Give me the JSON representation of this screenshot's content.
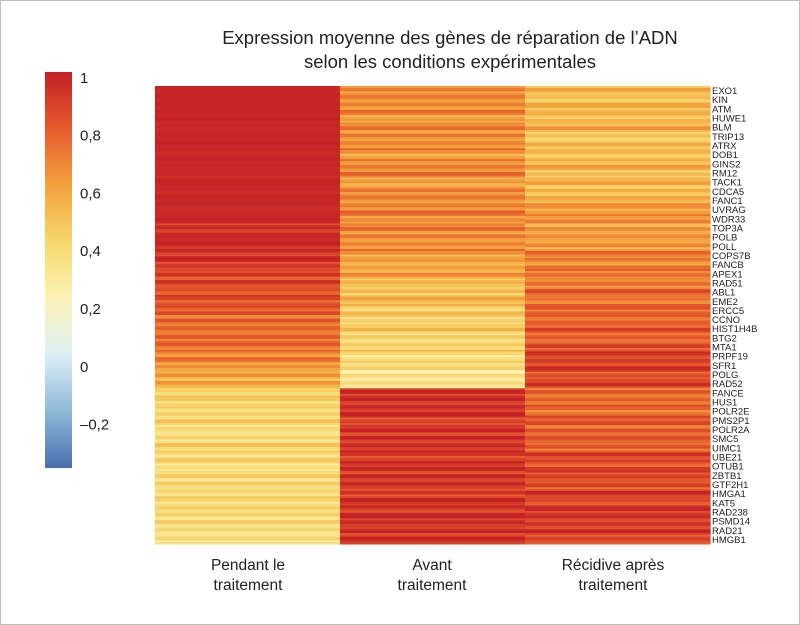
{
  "chart_data": {
    "type": "heatmap",
    "title_line1": "Expression moyenne des gènes de réparation de l’ADN",
    "title_line2": "selon les conditions expérimentales",
    "columns": [
      {
        "line1": "Pendant le",
        "line2": "traitement"
      },
      {
        "line1": "Avant",
        "line2": "traitement"
      },
      {
        "line1": "Récidive après",
        "line2": "traitement"
      }
    ],
    "colorbar": {
      "min": -0.35,
      "max": 1.02,
      "ticks": [
        "1",
        "0,8",
        "0,6",
        "0,4",
        "0,2",
        "0",
        "–0,2"
      ],
      "tick_values": [
        1,
        0.8,
        0.6,
        0.4,
        0.2,
        0,
        -0.2
      ],
      "colors": [
        "#4a6fb0",
        "#8fb8d8",
        "#def0f6",
        "#fbf3b6",
        "#f7d76b",
        "#f3a23d",
        "#e65a2c",
        "#c42026"
      ]
    },
    "genes": [
      "EXO1",
      "KIN",
      "ATM",
      "HUWE1",
      "BLM",
      "TRIP13",
      "ATRX",
      "DOB1",
      "GINS2",
      "RM12",
      "TACK1",
      "CDCA5",
      "FANC1",
      "UVRAG",
      "WDR33",
      "TOP3A",
      "POLB",
      "POLL",
      "COPS7B",
      "FANCB",
      "APEX1",
      "RAD51",
      "ABL1",
      "EME2",
      "ERCC5",
      "CCNO",
      "HIST1H4B",
      "BTG2",
      "MTA1",
      "PRPF19",
      "SFR1",
      "POLG",
      "RAD52",
      "FANCE",
      "HUS1",
      "POLR2E",
      "PMS2P1",
      "POLR2A",
      "SMC5",
      "UIMC1",
      "UBE21",
      "OTUB1",
      "ZBTB1",
      "GTF2H1",
      "HMGA1",
      "KAT5",
      "RAD238",
      "PSMD14",
      "RAD21",
      "HMGB1"
    ],
    "values": [
      [
        1.0,
        0.68,
        0.54
      ],
      [
        1.0,
        0.66,
        0.52
      ],
      [
        1.0,
        0.7,
        0.56
      ],
      [
        1.0,
        0.64,
        0.5
      ],
      [
        1.0,
        0.72,
        0.58
      ],
      [
        1.0,
        0.66,
        0.5
      ],
      [
        1.0,
        0.7,
        0.54
      ],
      [
        0.99,
        0.62,
        0.48
      ],
      [
        1.0,
        0.68,
        0.56
      ],
      [
        0.99,
        0.72,
        0.52
      ],
      [
        1.0,
        0.64,
        0.58
      ],
      [
        0.99,
        0.7,
        0.5
      ],
      [
        1.0,
        0.66,
        0.6
      ],
      [
        0.98,
        0.72,
        0.62
      ],
      [
        1.0,
        0.68,
        0.66
      ],
      [
        0.97,
        0.74,
        0.6
      ],
      [
        0.99,
        0.66,
        0.68
      ],
      [
        0.97,
        0.7,
        0.64
      ],
      [
        0.95,
        0.62,
        0.72
      ],
      [
        0.93,
        0.58,
        0.68
      ],
      [
        0.9,
        0.62,
        0.76
      ],
      [
        0.88,
        0.56,
        0.72
      ],
      [
        0.86,
        0.5,
        0.8
      ],
      [
        0.84,
        0.54,
        0.74
      ],
      [
        0.82,
        0.46,
        0.8
      ],
      [
        0.76,
        0.44,
        0.76
      ],
      [
        0.8,
        0.5,
        0.84
      ],
      [
        0.78,
        0.4,
        0.82
      ],
      [
        0.74,
        0.46,
        0.86
      ],
      [
        0.7,
        0.36,
        0.88
      ],
      [
        0.66,
        0.4,
        0.9
      ],
      [
        0.62,
        0.32,
        0.86
      ],
      [
        0.58,
        0.38,
        0.92
      ],
      [
        0.44,
        0.96,
        0.76
      ],
      [
        0.42,
        0.92,
        0.8
      ],
      [
        0.4,
        0.98,
        0.74
      ],
      [
        0.44,
        0.9,
        0.84
      ],
      [
        0.41,
        0.96,
        0.78
      ],
      [
        0.39,
        0.92,
        0.86
      ],
      [
        0.43,
        0.98,
        0.8
      ],
      [
        0.4,
        0.9,
        0.88
      ],
      [
        0.38,
        0.96,
        0.84
      ],
      [
        0.42,
        0.92,
        0.9
      ],
      [
        0.39,
        0.98,
        0.86
      ],
      [
        0.41,
        0.9,
        0.92
      ],
      [
        0.38,
        0.96,
        0.88
      ],
      [
        0.4,
        0.92,
        0.94
      ],
      [
        0.39,
        0.98,
        0.9
      ],
      [
        0.41,
        0.94,
        0.92
      ],
      [
        0.38,
        0.96,
        0.9
      ]
    ]
  }
}
